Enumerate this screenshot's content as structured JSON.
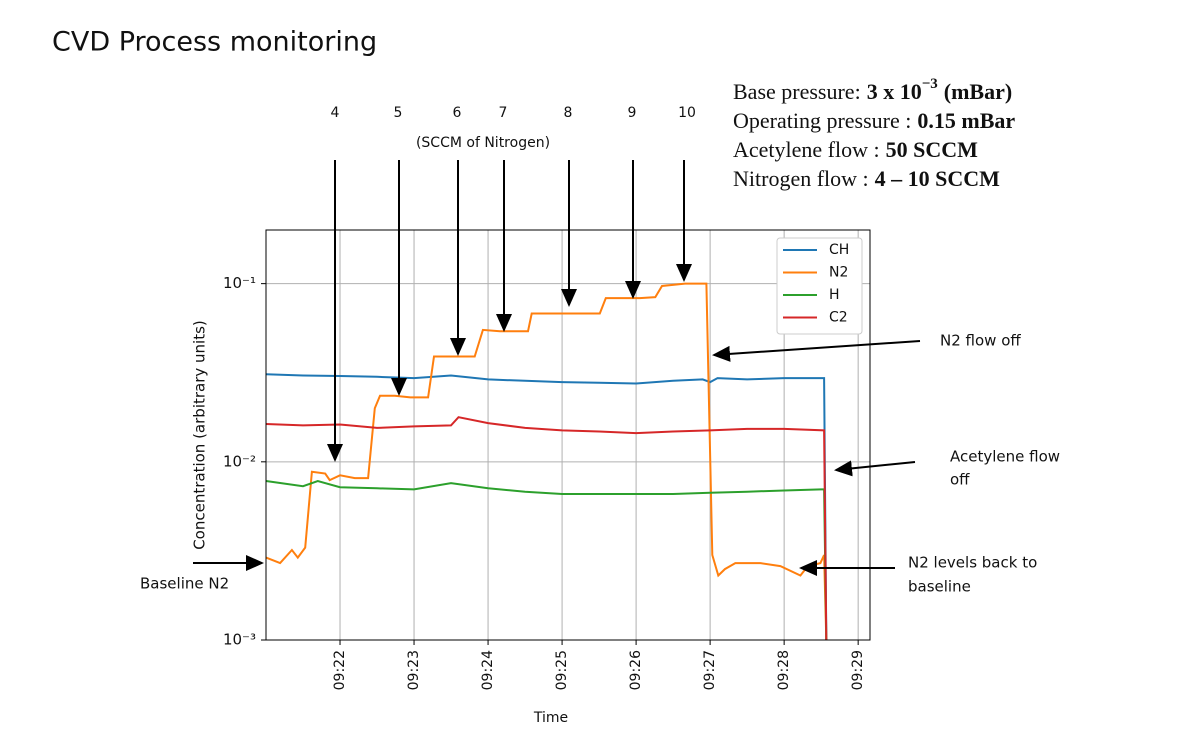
{
  "page_title": "CVD Process monitoring",
  "info": [
    {
      "label": "Base pressure:",
      "value": "3 x 10",
      "sup": "−3",
      "unit": "(mBar)"
    },
    {
      "label": "Operating pressure :",
      "value": "0.15 mBar"
    },
    {
      "label": "Acetylene flow :",
      "value": "50 SCCM"
    },
    {
      "label": "Nitrogen flow :",
      "value": "4 – 10  SCCM"
    }
  ],
  "chart_data": {
    "type": "line",
    "xlabel": "Time",
    "ylabel": "Concentration (arbitrary units)",
    "log_y": true,
    "grid": true,
    "legend": "upper right",
    "xlim": [
      21,
      29.16
    ],
    "xticks": [
      {
        "value": 22,
        "label": "09:22"
      },
      {
        "value": 23,
        "label": "09:23"
      },
      {
        "value": 24,
        "label": "09:24"
      },
      {
        "value": 25,
        "label": "09:25"
      },
      {
        "value": 26,
        "label": "09:26"
      },
      {
        "value": 27,
        "label": "09:27"
      },
      {
        "value": 28,
        "label": "09:28"
      },
      {
        "value": 29,
        "label": "09:29"
      }
    ],
    "ylim": [
      0.001,
      0.2
    ],
    "yticks": [
      {
        "value": 0.001,
        "label": "10⁻³"
      },
      {
        "value": 0.01,
        "label": "10⁻²"
      },
      {
        "value": 0.1,
        "label": "10⁻¹"
      }
    ],
    "series": [
      {
        "name": "CH",
        "color": "#1f77b4",
        "x": [
          21.0,
          21.5,
          22.0,
          22.5,
          23.0,
          23.5,
          24.0,
          24.5,
          25.0,
          25.5,
          26.0,
          26.5,
          26.9,
          27.0,
          27.1,
          27.5,
          28.0,
          28.5,
          28.54,
          28.57
        ],
        "values": [
          0.031,
          0.0305,
          0.0303,
          0.03,
          0.0295,
          0.0305,
          0.029,
          0.0285,
          0.028,
          0.0278,
          0.0275,
          0.0285,
          0.029,
          0.028,
          0.0295,
          0.029,
          0.0295,
          0.0295,
          0.0295,
          0.001
        ]
      },
      {
        "name": "N2",
        "color": "#ff7f0e",
        "x": [
          21.0,
          21.19,
          21.35,
          21.43,
          21.53,
          21.62,
          21.8,
          21.86,
          22.0,
          22.2,
          22.38,
          22.47,
          22.54,
          22.74,
          22.95,
          23.19,
          23.27,
          23.49,
          23.82,
          23.93,
          24.16,
          24.54,
          24.59,
          24.97,
          25.51,
          25.59,
          26.05,
          26.26,
          26.35,
          26.66,
          26.95,
          27.03,
          27.11,
          27.2,
          27.34,
          27.68,
          27.95,
          28.22,
          28.32,
          28.49,
          28.54,
          28.57
        ],
        "values": [
          0.0029,
          0.0027,
          0.0032,
          0.0029,
          0.0033,
          0.0088,
          0.0086,
          0.0079,
          0.0084,
          0.0081,
          0.0081,
          0.02,
          0.0235,
          0.0235,
          0.023,
          0.023,
          0.039,
          0.039,
          0.039,
          0.055,
          0.054,
          0.054,
          0.068,
          0.068,
          0.068,
          0.083,
          0.083,
          0.084,
          0.097,
          0.1,
          0.1,
          0.003,
          0.0023,
          0.0025,
          0.0027,
          0.0027,
          0.0026,
          0.0023,
          0.0026,
          0.0027,
          0.003,
          0.001
        ]
      },
      {
        "name": "H",
        "color": "#2ca02c",
        "x": [
          21.0,
          21.5,
          21.7,
          22.0,
          22.5,
          23.0,
          23.5,
          24.0,
          24.5,
          25.0,
          25.5,
          26.0,
          26.5,
          27.0,
          27.5,
          28.0,
          28.5,
          28.54,
          28.57
        ],
        "values": [
          0.0078,
          0.0073,
          0.0078,
          0.0072,
          0.0071,
          0.007,
          0.0076,
          0.0071,
          0.0068,
          0.0066,
          0.0066,
          0.0066,
          0.0066,
          0.0067,
          0.0068,
          0.0069,
          0.007,
          0.007,
          0.001
        ]
      },
      {
        "name": "C2",
        "color": "#d62728",
        "x": [
          21.0,
          21.5,
          22.0,
          22.5,
          23.0,
          23.5,
          23.6,
          24.0,
          24.5,
          25.0,
          25.5,
          26.0,
          26.5,
          27.0,
          27.5,
          28.0,
          28.54,
          28.57
        ],
        "values": [
          0.0163,
          0.016,
          0.0162,
          0.0155,
          0.0158,
          0.016,
          0.0178,
          0.0165,
          0.0155,
          0.015,
          0.0148,
          0.0145,
          0.0148,
          0.015,
          0.0153,
          0.0153,
          0.015,
          0.001
        ]
      }
    ],
    "flow_labels": [
      "4",
      "5",
      "6",
      "7",
      "8",
      "9",
      "10"
    ],
    "flow_unit": "(SCCM of Nitrogen)",
    "annotations": [
      "N2 flow off",
      "Acetylene flow",
      "off",
      "N2 levels back to",
      "baseline",
      "Baseline N2"
    ]
  }
}
